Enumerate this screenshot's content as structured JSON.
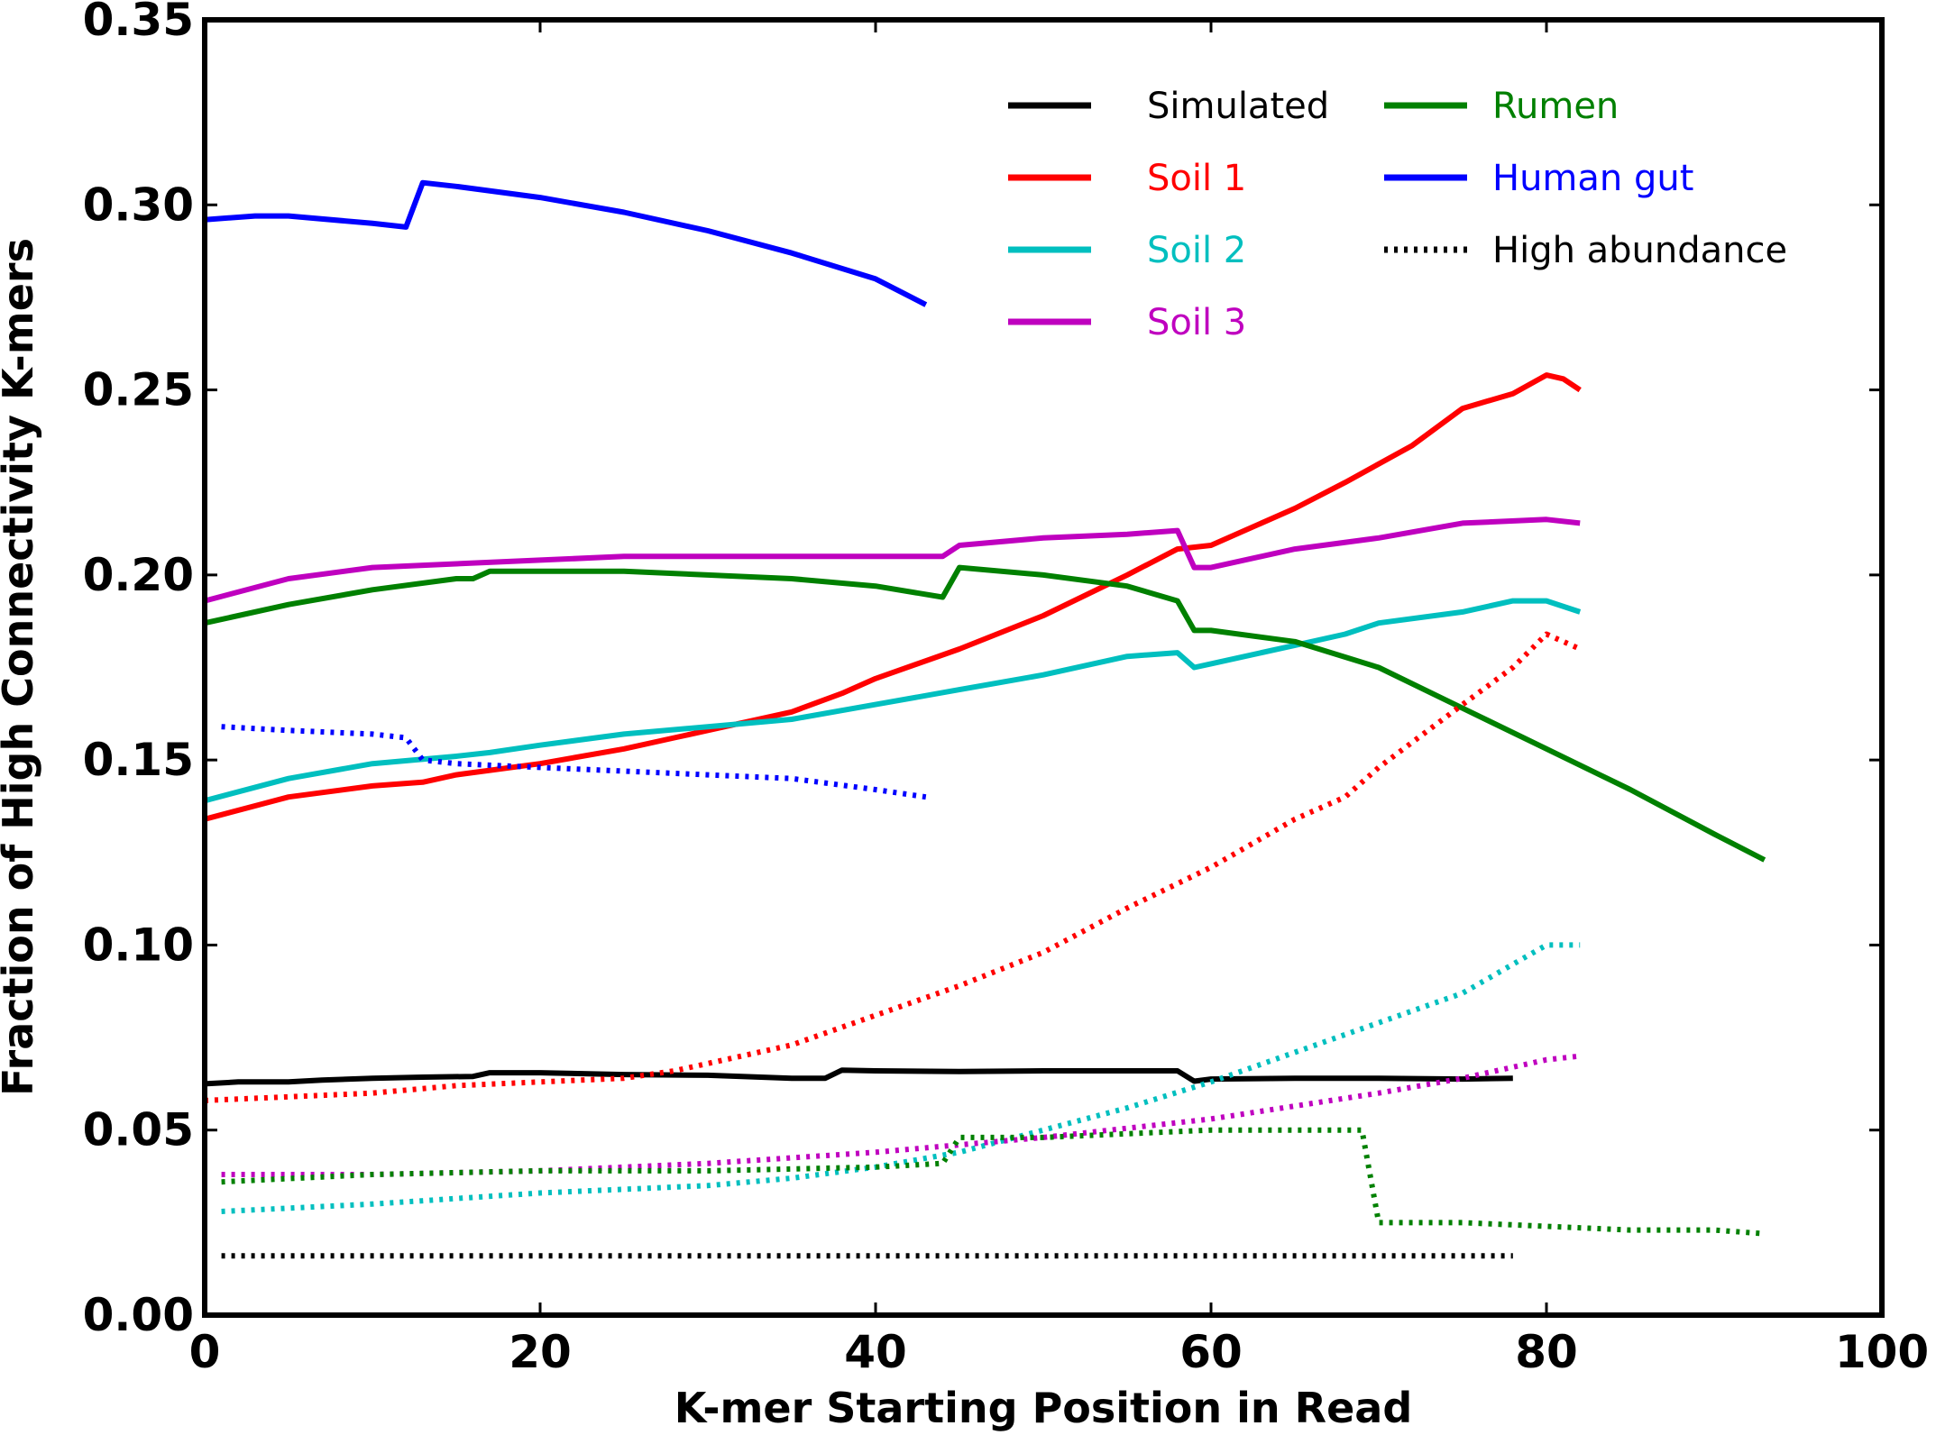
{
  "chart_data": {
    "type": "line",
    "title": "",
    "xlabel": "K-mer Starting Position in Read",
    "ylabel": "Fraction of High Connectivity K-mers",
    "xlim": [
      0,
      100
    ],
    "ylim": [
      0,
      0.35
    ],
    "xticks": [
      0,
      20,
      40,
      60,
      80,
      100
    ],
    "xtick_labels": [
      "0",
      "20",
      "40",
      "60",
      "80",
      "100"
    ],
    "yticks": [
      0,
      0.05,
      0.1,
      0.15,
      0.2,
      0.25,
      0.3,
      0.35
    ],
    "ytick_labels": [
      "0.00",
      "0.05",
      "0.10",
      "0.15",
      "0.20",
      "0.25",
      "0.30",
      "0.35"
    ],
    "grid": false,
    "legend_position": "top-right",
    "series": [
      {
        "name": "Simulated",
        "color": "#000000",
        "style": "solid",
        "x": [
          0,
          2,
          5,
          7,
          10,
          13,
          16,
          17,
          20,
          25,
          30,
          35,
          37,
          38,
          40,
          45,
          50,
          55,
          58,
          59,
          60,
          65,
          70,
          75,
          78
        ],
        "y": [
          0.0625,
          0.063,
          0.063,
          0.0635,
          0.064,
          0.0643,
          0.0645,
          0.0655,
          0.0655,
          0.065,
          0.0648,
          0.064,
          0.064,
          0.0662,
          0.066,
          0.0658,
          0.066,
          0.066,
          0.066,
          0.0632,
          0.0638,
          0.064,
          0.064,
          0.0638,
          0.064
        ]
      },
      {
        "name": "Soil 1",
        "color": "#ff0000",
        "style": "solid",
        "x": [
          0,
          5,
          10,
          13,
          15,
          20,
          25,
          28,
          30,
          35,
          38,
          40,
          45,
          50,
          55,
          58,
          60,
          65,
          68,
          72,
          75,
          78,
          80,
          81,
          82
        ],
        "y": [
          0.134,
          0.14,
          0.143,
          0.144,
          0.146,
          0.149,
          0.153,
          0.156,
          0.158,
          0.163,
          0.168,
          0.172,
          0.18,
          0.189,
          0.2,
          0.207,
          0.208,
          0.218,
          0.225,
          0.235,
          0.245,
          0.249,
          0.254,
          0.253,
          0.25
        ]
      },
      {
        "name": "Soil 2",
        "color": "#00bfbf",
        "style": "solid",
        "x": [
          0,
          5,
          10,
          15,
          17,
          20,
          25,
          30,
          35,
          40,
          45,
          50,
          55,
          58,
          59,
          60,
          65,
          68,
          70,
          75,
          78,
          80,
          82
        ],
        "y": [
          0.139,
          0.145,
          0.149,
          0.151,
          0.152,
          0.154,
          0.157,
          0.159,
          0.161,
          0.165,
          0.169,
          0.173,
          0.178,
          0.179,
          0.175,
          0.176,
          0.181,
          0.184,
          0.187,
          0.19,
          0.193,
          0.193,
          0.19
        ]
      },
      {
        "name": "Soil 3",
        "color": "#bf00bf",
        "style": "solid",
        "x": [
          0,
          5,
          10,
          15,
          20,
          25,
          30,
          35,
          40,
          44,
          45,
          50,
          55,
          58,
          59,
          60,
          65,
          70,
          75,
          80,
          82
        ],
        "y": [
          0.193,
          0.199,
          0.202,
          0.203,
          0.204,
          0.205,
          0.205,
          0.205,
          0.205,
          0.205,
          0.208,
          0.21,
          0.211,
          0.212,
          0.202,
          0.202,
          0.207,
          0.21,
          0.214,
          0.215,
          0.214
        ]
      },
      {
        "name": "Rumen",
        "color": "#008000",
        "style": "solid",
        "x": [
          0,
          5,
          10,
          15,
          16,
          17,
          20,
          25,
          30,
          35,
          40,
          44,
          45,
          50,
          55,
          58,
          59,
          60,
          65,
          70,
          75,
          80,
          85,
          90,
          93
        ],
        "y": [
          0.187,
          0.192,
          0.196,
          0.199,
          0.199,
          0.201,
          0.201,
          0.201,
          0.2,
          0.199,
          0.197,
          0.194,
          0.202,
          0.2,
          0.197,
          0.193,
          0.185,
          0.185,
          0.182,
          0.175,
          0.164,
          0.153,
          0.142,
          0.13,
          0.123
        ]
      },
      {
        "name": "Human gut",
        "color": "#0000ff",
        "style": "solid",
        "x": [
          0,
          3,
          5,
          10,
          12,
          13,
          15,
          20,
          25,
          30,
          35,
          40,
          43
        ],
        "y": [
          0.296,
          0.297,
          0.297,
          0.295,
          0.294,
          0.306,
          0.305,
          0.302,
          0.298,
          0.293,
          0.287,
          0.28,
          0.273
        ]
      },
      {
        "name": "",
        "color": "#000000",
        "style": "dotted",
        "x": [
          1,
          78
        ],
        "y": [
          0.016,
          0.016
        ]
      },
      {
        "name": "",
        "color": "#ff0000",
        "style": "dotted",
        "x": [
          0,
          5,
          10,
          15,
          20,
          25,
          28,
          30,
          35,
          40,
          45,
          50,
          55,
          60,
          65,
          68,
          70,
          75,
          78,
          80,
          82
        ],
        "y": [
          0.058,
          0.059,
          0.06,
          0.062,
          0.063,
          0.064,
          0.066,
          0.068,
          0.073,
          0.081,
          0.089,
          0.098,
          0.11,
          0.121,
          0.134,
          0.14,
          0.148,
          0.165,
          0.175,
          0.184,
          0.18
        ]
      },
      {
        "name": "",
        "color": "#00bfbf",
        "style": "dotted",
        "x": [
          1,
          10,
          20,
          30,
          35,
          40,
          45,
          50,
          55,
          60,
          65,
          70,
          75,
          80,
          82
        ],
        "y": [
          0.028,
          0.03,
          0.033,
          0.035,
          0.037,
          0.04,
          0.044,
          0.05,
          0.056,
          0.063,
          0.071,
          0.079,
          0.087,
          0.1,
          0.1
        ]
      },
      {
        "name": "",
        "color": "#bf00bf",
        "style": "dotted",
        "x": [
          1,
          10,
          20,
          30,
          40,
          50,
          60,
          70,
          75,
          80,
          82
        ],
        "y": [
          0.038,
          0.038,
          0.039,
          0.041,
          0.044,
          0.048,
          0.053,
          0.06,
          0.064,
          0.069,
          0.07
        ]
      },
      {
        "name": "",
        "color": "#008000",
        "style": "dotted",
        "x": [
          1,
          10,
          20,
          30,
          40,
          44,
          45,
          50,
          55,
          60,
          65,
          69,
          70,
          75,
          80,
          85,
          90,
          93
        ],
        "y": [
          0.036,
          0.038,
          0.039,
          0.039,
          0.04,
          0.041,
          0.048,
          0.048,
          0.049,
          0.05,
          0.05,
          0.05,
          0.025,
          0.025,
          0.024,
          0.023,
          0.023,
          0.022
        ]
      },
      {
        "name": "",
        "color": "#0000ff",
        "style": "dotted",
        "x": [
          1,
          5,
          10,
          12,
          13,
          15,
          20,
          25,
          30,
          35,
          40,
          43
        ],
        "y": [
          0.159,
          0.158,
          0.157,
          0.156,
          0.15,
          0.149,
          0.148,
          0.147,
          0.146,
          0.145,
          0.142,
          0.14
        ]
      }
    ],
    "legend": [
      {
        "label": "Simulated",
        "color": "#000000",
        "text_color": "#000000",
        "style": "solid"
      },
      {
        "label": "Soil 1",
        "color": "#ff0000",
        "text_color": "#ff0000",
        "style": "solid"
      },
      {
        "label": "Soil 2",
        "color": "#00bfbf",
        "text_color": "#00bfbf",
        "style": "solid"
      },
      {
        "label": "Soil 3",
        "color": "#bf00bf",
        "text_color": "#bf00bf",
        "style": "solid"
      },
      {
        "label": "Rumen",
        "color": "#008000",
        "text_color": "#008000",
        "style": "solid"
      },
      {
        "label": "Human gut",
        "color": "#0000ff",
        "text_color": "#0000ff",
        "style": "solid"
      },
      {
        "label": "High abundance",
        "color": "#000000",
        "text_color": "#000000",
        "style": "dotted"
      }
    ]
  }
}
